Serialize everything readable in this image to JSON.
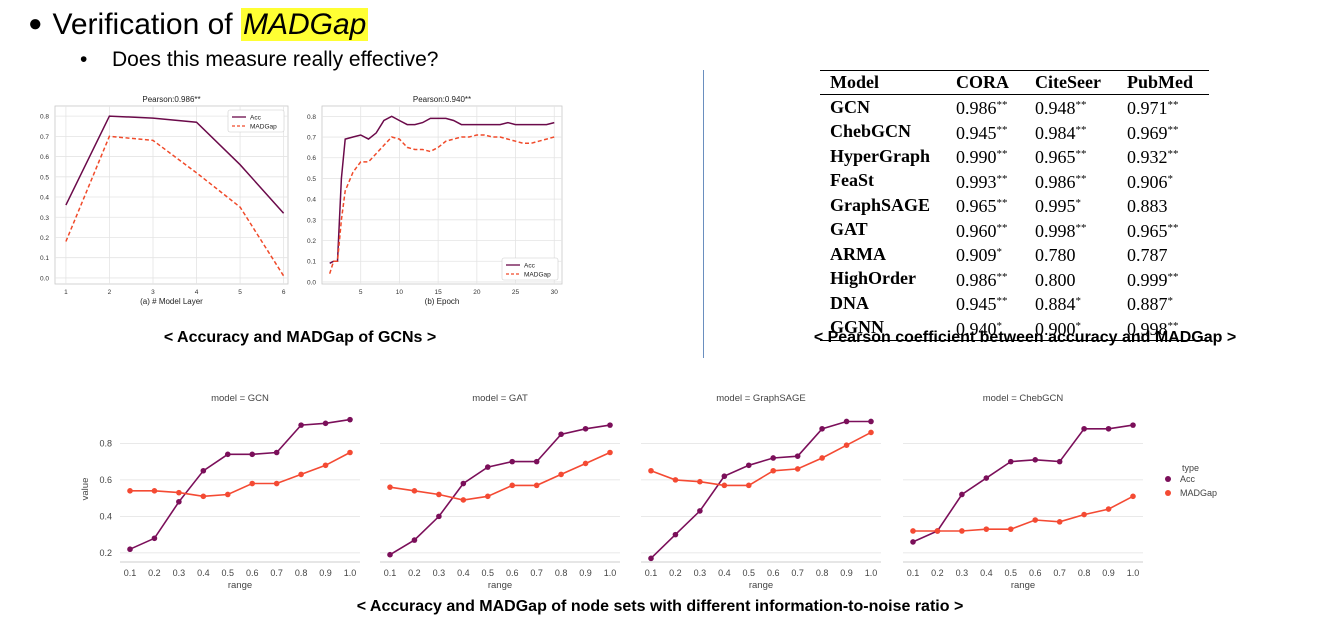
{
  "slide": {
    "title_bullet": "●",
    "title_prefix": "Verification of",
    "title_highlight": "MADGap",
    "subtitle_bullet": "•",
    "subtitle": "Does this measure really effective?",
    "caption_left": "< Accuracy and MADGap of GCNs >",
    "caption_right": "< Pearson coefficient between accuracy and MADGap >",
    "caption_bottom": "< Accuracy and MADGap of node sets with different information-to-noise ratio >"
  },
  "colors": {
    "acc": "#6b0a4a",
    "madgap": "#f04a2a",
    "acc_dot": "#7b0f5a",
    "madgap_dot": "#f44a33",
    "highlight": "#ffff33"
  },
  "pearson_table": {
    "headers": [
      "Model",
      "CORA",
      "CiteSeer",
      "PubMed"
    ],
    "rows": [
      {
        "model": "GCN",
        "cora": "0.986",
        "cora_sig": "**",
        "citeseer": "0.948",
        "citeseer_sig": "**",
        "pubmed": "0.971",
        "pubmed_sig": "**"
      },
      {
        "model": "ChebGCN",
        "cora": "0.945",
        "cora_sig": "**",
        "citeseer": "0.984",
        "citeseer_sig": "**",
        "pubmed": "0.969",
        "pubmed_sig": "**"
      },
      {
        "model": "HyperGraph",
        "cora": "0.990",
        "cora_sig": "**",
        "citeseer": "0.965",
        "citeseer_sig": "**",
        "pubmed": "0.932",
        "pubmed_sig": "**"
      },
      {
        "model": "FeaSt",
        "cora": "0.993",
        "cora_sig": "**",
        "citeseer": "0.986",
        "citeseer_sig": "**",
        "pubmed": "0.906",
        "pubmed_sig": "*"
      },
      {
        "model": "GraphSAGE",
        "cora": "0.965",
        "cora_sig": "**",
        "citeseer": "0.995",
        "citeseer_sig": "*",
        "pubmed": "0.883",
        "pubmed_sig": ""
      },
      {
        "model": "GAT",
        "cora": "0.960",
        "cora_sig": "**",
        "citeseer": "0.998",
        "citeseer_sig": "**",
        "pubmed": "0.965",
        "pubmed_sig": "**"
      },
      {
        "model": "ARMA",
        "cora": "0.909",
        "cora_sig": "*",
        "citeseer": "0.780",
        "citeseer_sig": "",
        "pubmed": "0.787",
        "pubmed_sig": ""
      },
      {
        "model": "HighOrder",
        "cora": "0.986",
        "cora_sig": "**",
        "citeseer": "0.800",
        "citeseer_sig": "",
        "pubmed": "0.999",
        "pubmed_sig": "**"
      },
      {
        "model": "DNA",
        "cora": "0.945",
        "cora_sig": "**",
        "citeseer": "0.884",
        "citeseer_sig": "*",
        "pubmed": "0.887",
        "pubmed_sig": "*"
      },
      {
        "model": "GGNN",
        "cora": "0.940",
        "cora_sig": "*",
        "citeseer": "0.900",
        "citeseer_sig": "*",
        "pubmed": "0.998",
        "pubmed_sig": "**"
      }
    ]
  },
  "chart_data": [
    {
      "type": "line",
      "title": "Pearson:0.986**",
      "xlabel": "(a) # Model Layer",
      "ylabel": "",
      "x": [
        1,
        2,
        3,
        4,
        5,
        6
      ],
      "xticks": [
        1,
        2,
        3,
        4,
        5,
        6
      ],
      "yticks": [
        "0.0",
        "0.1",
        "0.2",
        "0.3",
        "0.4",
        "0.5",
        "0.6",
        "0.7",
        "0.8"
      ],
      "ylim": [
        -0.03,
        0.85
      ],
      "xlim": [
        0.75,
        6.1
      ],
      "legend": "top-right",
      "series": [
        {
          "name": "Acc",
          "values": [
            0.36,
            0.8,
            0.79,
            0.77,
            0.56,
            0.32
          ]
        },
        {
          "name": "MADGap",
          "values": [
            0.18,
            0.7,
            0.68,
            0.52,
            0.35,
            0.01
          ]
        }
      ]
    },
    {
      "type": "line",
      "title": "Pearson:0.940**",
      "xlabel": "(b) Epoch",
      "ylabel": "",
      "x": [
        1,
        1.5,
        2,
        2.5,
        3,
        4,
        5,
        6,
        7,
        8,
        9,
        10,
        11,
        12,
        13,
        14,
        15,
        16,
        17,
        18,
        19,
        20,
        21,
        22,
        23,
        24,
        25,
        26,
        27,
        28,
        29,
        30
      ],
      "xticks": [
        5,
        10,
        15,
        20,
        25,
        30
      ],
      "yticks": [
        "0.0",
        "0.1",
        "0.2",
        "0.3",
        "0.4",
        "0.5",
        "0.6",
        "0.7",
        "0.8"
      ],
      "ylim": [
        -0.01,
        0.85
      ],
      "xlim": [
        0,
        31
      ],
      "legend": "bottom-right",
      "series": [
        {
          "name": "Acc",
          "values": [
            0.09,
            0.1,
            0.1,
            0.5,
            0.69,
            0.7,
            0.71,
            0.69,
            0.72,
            0.78,
            0.8,
            0.78,
            0.76,
            0.76,
            0.77,
            0.79,
            0.79,
            0.79,
            0.78,
            0.76,
            0.76,
            0.76,
            0.76,
            0.76,
            0.76,
            0.77,
            0.76,
            0.76,
            0.76,
            0.76,
            0.76,
            0.77
          ]
        },
        {
          "name": "MADGap",
          "values": [
            0.04,
            0.1,
            0.1,
            0.3,
            0.44,
            0.53,
            0.58,
            0.58,
            0.62,
            0.66,
            0.7,
            0.69,
            0.65,
            0.64,
            0.64,
            0.63,
            0.65,
            0.68,
            0.69,
            0.7,
            0.7,
            0.71,
            0.71,
            0.7,
            0.7,
            0.69,
            0.68,
            0.67,
            0.67,
            0.68,
            0.69,
            0.7
          ]
        }
      ]
    },
    {
      "type": "line",
      "title": "model = GCN",
      "xlabel": "range",
      "ylabel": "value",
      "x": [
        "0.1",
        "0.2",
        "0.3",
        "0.4",
        "0.5",
        "0.6",
        "0.7",
        "0.8",
        "0.9",
        "1.0"
      ],
      "yticks": [
        "0.2",
        "0.4",
        "0.6",
        "0.8"
      ],
      "ylim": [
        0.15,
        0.95
      ],
      "series": [
        {
          "name": "Acc",
          "values": [
            0.22,
            0.28,
            0.48,
            0.65,
            0.74,
            0.74,
            0.75,
            0.9,
            0.91,
            0.93
          ]
        },
        {
          "name": "MADGap",
          "values": [
            0.54,
            0.54,
            0.53,
            0.51,
            0.52,
            0.58,
            0.58,
            0.63,
            0.68,
            0.75
          ]
        }
      ]
    },
    {
      "type": "line",
      "title": "model = GAT",
      "xlabel": "range",
      "ylabel": "",
      "x": [
        "0.1",
        "0.2",
        "0.3",
        "0.4",
        "0.5",
        "0.6",
        "0.7",
        "0.8",
        "0.9",
        "1.0"
      ],
      "yticks": [],
      "ylim": [
        0.15,
        0.95
      ],
      "series": [
        {
          "name": "Acc",
          "values": [
            0.19,
            0.27,
            0.4,
            0.58,
            0.67,
            0.7,
            0.7,
            0.85,
            0.88,
            0.9
          ]
        },
        {
          "name": "MADGap",
          "values": [
            0.56,
            0.54,
            0.52,
            0.49,
            0.51,
            0.57,
            0.57,
            0.63,
            0.69,
            0.75
          ]
        }
      ]
    },
    {
      "type": "line",
      "title": "model = GraphSAGE",
      "xlabel": "range",
      "ylabel": "",
      "x": [
        "0.1",
        "0.2",
        "0.3",
        "0.4",
        "0.5",
        "0.6",
        "0.7",
        "0.8",
        "0.9",
        "1.0"
      ],
      "yticks": [],
      "ylim": [
        0.15,
        0.95
      ],
      "series": [
        {
          "name": "Acc",
          "values": [
            0.17,
            0.3,
            0.43,
            0.62,
            0.68,
            0.72,
            0.73,
            0.88,
            0.92,
            0.92
          ]
        },
        {
          "name": "MADGap",
          "values": [
            0.65,
            0.6,
            0.59,
            0.57,
            0.57,
            0.65,
            0.66,
            0.72,
            0.79,
            0.86
          ]
        }
      ]
    },
    {
      "type": "line",
      "title": "model = ChebGCN",
      "xlabel": "range",
      "ylabel": "",
      "x": [
        "0.1",
        "0.2",
        "0.3",
        "0.4",
        "0.5",
        "0.6",
        "0.7",
        "0.8",
        "0.9",
        "1.0"
      ],
      "yticks": [],
      "ylim": [
        0.15,
        0.95
      ],
      "series": [
        {
          "name": "Acc",
          "values": [
            0.26,
            0.32,
            0.52,
            0.61,
            0.7,
            0.71,
            0.7,
            0.88,
            0.88,
            0.9
          ]
        },
        {
          "name": "MADGap",
          "values": [
            0.32,
            0.32,
            0.32,
            0.33,
            0.33,
            0.38,
            0.37,
            0.41,
            0.44,
            0.51
          ]
        }
      ]
    }
  ],
  "seaborn_legend": {
    "title": "type",
    "items": [
      "Acc",
      "MADGap"
    ]
  }
}
